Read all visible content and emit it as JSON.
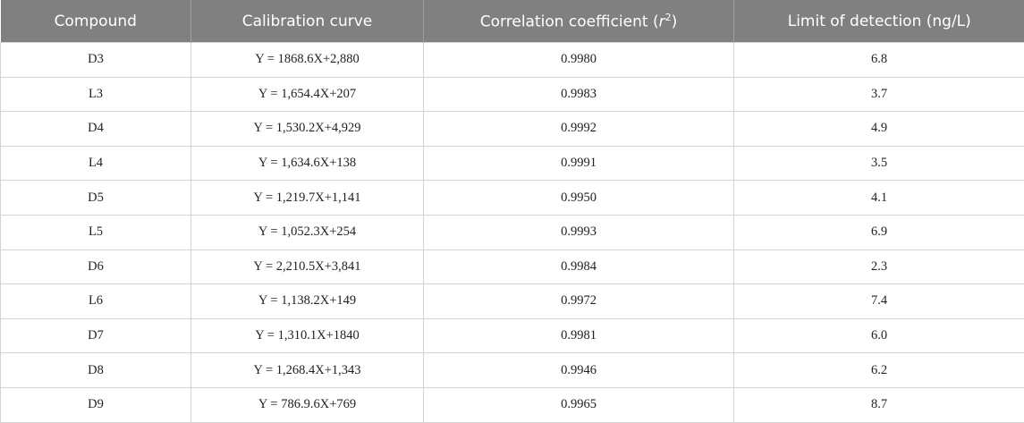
{
  "table": {
    "header": [
      "Compound",
      "Calibration curve",
      [
        "Correlation coefficient (",
        "r",
        "2",
        ")"
      ],
      "Limit of detection (ng/L)"
    ],
    "rows": [
      [
        "D3",
        "Y = 1868.6X+2,880",
        "0.9980",
        "6.8"
      ],
      [
        "L3",
        "Y = 1,654.4X+207",
        "0.9983",
        "3.7"
      ],
      [
        "D4",
        "Y = 1,530.2X+4,929",
        "0.9992",
        "4.9"
      ],
      [
        "L4",
        "Y = 1,634.6X+138",
        "0.9991",
        "3.5"
      ],
      [
        "D5",
        "Y = 1,219.7X+1,141",
        "0.9950",
        "4.1"
      ],
      [
        "L5",
        "Y = 1,052.3X+254",
        "0.9993",
        "6.9"
      ],
      [
        "D6",
        "Y = 2,210.5X+3,841",
        "0.9984",
        "2.3"
      ],
      [
        "L6",
        "Y = 1,138.2X+149",
        "0.9972",
        "7.4"
      ],
      [
        "D7",
        "Y = 1,310.1X+1840",
        "0.9981",
        "6.0"
      ],
      [
        "D8",
        "Y = 1,268.4X+1,343",
        "0.9946",
        "6.2"
      ],
      [
        "D9",
        "Y = 786.9.6X+769",
        "0.9965",
        "8.7"
      ]
    ]
  }
}
